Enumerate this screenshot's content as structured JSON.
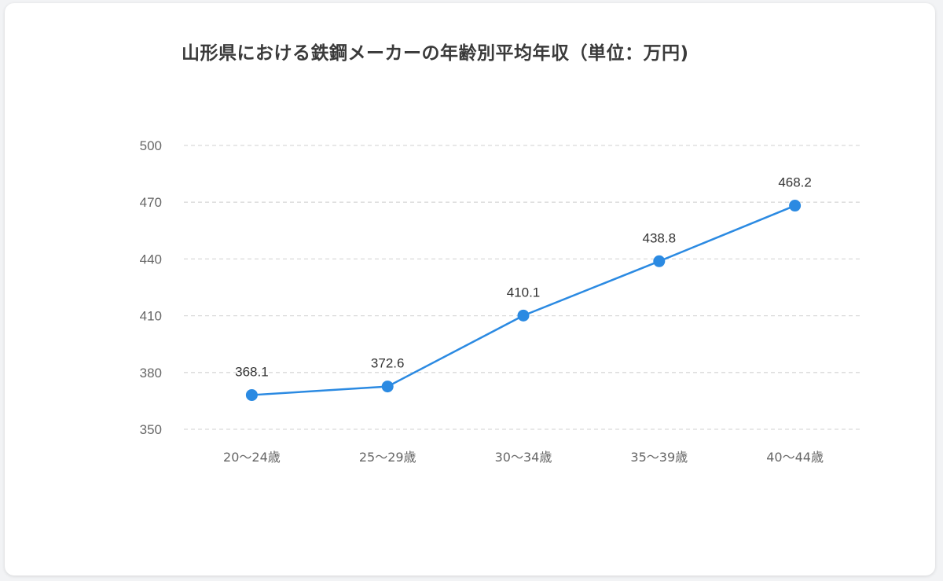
{
  "chart_data": {
    "type": "line",
    "title": "山形県における鉄鋼メーカーの年齢別平均年収（単位：万円)",
    "xlabel": "",
    "ylabel": "",
    "categories": [
      "20〜24歳",
      "25〜29歳",
      "30〜34歳",
      "35〜39歳",
      "40〜44歳"
    ],
    "series": [
      {
        "values": [
          368.1,
          372.6,
          410.1,
          438.8,
          468.2
        ]
      }
    ],
    "data_labels": [
      "368.1",
      "372.6",
      "410.1",
      "438.8",
      "468.2"
    ],
    "ylim": [
      350,
      500
    ],
    "yticks": [
      350,
      380,
      410,
      440,
      470,
      500
    ],
    "ytick_labels": [
      "350",
      "380",
      "410",
      "440",
      "470",
      "500"
    ],
    "grid": "horizontal-dashed",
    "legend": "none",
    "colors": {
      "line": "#2b8ae2",
      "grid": "#d9d9d9",
      "card": "#ffffff",
      "background": "#f2f3f5"
    }
  }
}
